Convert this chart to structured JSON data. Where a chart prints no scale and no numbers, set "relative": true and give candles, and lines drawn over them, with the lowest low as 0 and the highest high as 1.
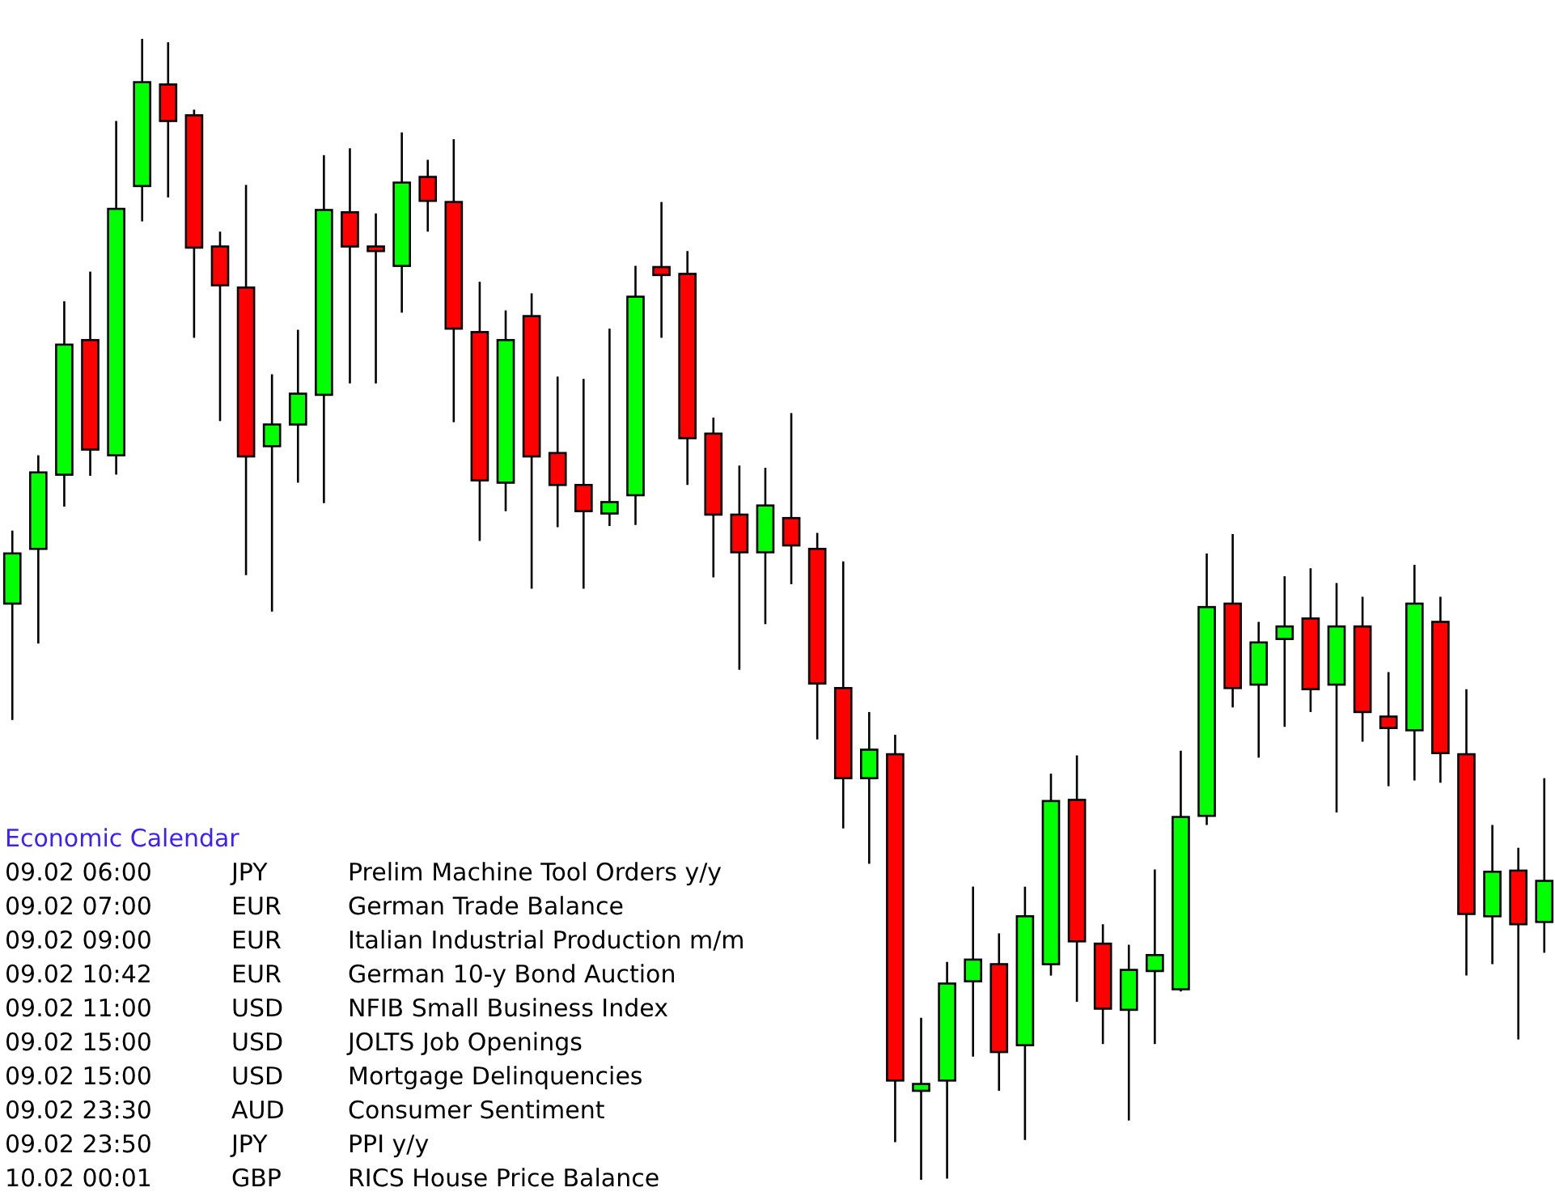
{
  "chart_data": [
    {
      "type": "candlestick",
      "relative": true,
      "categories": [
        null,
        null,
        null,
        null,
        null,
        null,
        null,
        null,
        null,
        null,
        null,
        null,
        null,
        null,
        null,
        null,
        null,
        null,
        null,
        null,
        null,
        null,
        null,
        null,
        null,
        null,
        null,
        null,
        null,
        null,
        null,
        null,
        null,
        null,
        null,
        null,
        null,
        null,
        null,
        null,
        null,
        null,
        null,
        null,
        null,
        null,
        null,
        null,
        null,
        null,
        null,
        null,
        null,
        null,
        null,
        null,
        null,
        null,
        null,
        null
      ],
      "ohlc": [
        [
          0.505,
          0.569,
          0.403,
          0.549
        ],
        [
          0.553,
          0.635,
          0.47,
          0.62
        ],
        [
          0.618,
          0.77,
          0.59,
          0.732
        ],
        [
          0.736,
          0.796,
          0.617,
          0.64
        ],
        [
          0.635,
          0.928,
          0.618,
          0.851
        ],
        [
          0.871,
          1,
          0.84,
          0.962
        ],
        [
          0.96,
          0.997,
          0.861,
          0.928
        ],
        [
          0.933,
          0.938,
          0.738,
          0.817
        ],
        [
          0.818,
          0.831,
          0.665,
          0.784
        ],
        [
          0.782,
          0.872,
          0.53,
          0.634
        ],
        [
          0.643,
          0.706,
          0.498,
          0.662
        ],
        [
          0.662,
          0.745,
          0.611,
          0.689
        ],
        [
          0.688,
          0.898,
          0.593,
          0.85
        ],
        [
          0.848,
          0.904,
          0.698,
          0.818
        ],
        [
          0.818,
          0.847,
          0.698,
          0.814
        ],
        [
          0.801,
          0.918,
          0.76,
          0.874
        ],
        [
          0.879,
          0.894,
          0.831,
          0.858
        ],
        [
          0.857,
          0.912,
          0.664,
          0.746
        ],
        [
          0.743,
          0.787,
          0.56,
          0.613
        ],
        [
          0.611,
          0.762,
          0.586,
          0.736
        ],
        [
          0.757,
          0.777,
          0.518,
          0.634
        ],
        [
          0.637,
          0.704,
          0.572,
          0.609
        ],
        [
          0.609,
          0.702,
          0.518,
          0.586
        ],
        [
          0.584,
          0.746,
          0.573,
          0.594
        ],
        [
          0.6,
          0.801,
          0.574,
          0.774
        ],
        [
          0.8,
          0.857,
          0.738,
          0.793
        ],
        [
          0.794,
          0.814,
          0.609,
          0.65
        ],
        [
          0.654,
          0.668,
          0.528,
          0.583
        ],
        [
          0.583,
          0.626,
          0.447,
          0.55
        ],
        [
          0.55,
          0.624,
          0.487,
          0.591
        ],
        [
          0.58,
          0.672,
          0.522,
          0.556
        ],
        [
          0.553,
          0.567,
          0.386,
          0.435
        ],
        [
          0.431,
          0.542,
          0.308,
          0.352
        ],
        [
          0.352,
          0.41,
          0.277,
          0.377
        ],
        [
          0.373,
          0.39,
          0.033,
          0.087
        ],
        [
          0.078,
          0.142,
          0,
          0.084
        ],
        [
          0.087,
          0.191,
          0.001,
          0.172
        ],
        [
          0.174,
          0.257,
          0.108,
          0.193
        ],
        [
          0.189,
          0.216,
          0.078,
          0.112
        ],
        [
          0.118,
          0.257,
          0.035,
          0.231
        ],
        [
          0.189,
          0.356,
          0.179,
          0.332
        ],
        [
          0.333,
          0.372,
          0.156,
          0.209
        ],
        [
          0.207,
          0.224,
          0.119,
          0.15
        ],
        [
          0.149,
          0.206,
          0.052,
          0.184
        ],
        [
          0.183,
          0.272,
          0.119,
          0.197
        ],
        [
          0.167,
          0.376,
          0.165,
          0.318
        ],
        [
          0.319,
          0.549,
          0.311,
          0.502
        ],
        [
          0.505,
          0.566,
          0.414,
          0.431
        ],
        [
          0.434,
          0.489,
          0.37,
          0.471
        ],
        [
          0.474,
          0.529,
          0.397,
          0.485
        ],
        [
          0.492,
          0.536,
          0.41,
          0.43
        ],
        [
          0.434,
          0.523,
          0.322,
          0.485
        ],
        [
          0.485,
          0.511,
          0.384,
          0.41
        ],
        [
          0.406,
          0.445,
          0.345,
          0.396
        ],
        [
          0.394,
          0.539,
          0.35,
          0.505
        ],
        [
          0.489,
          0.511,
          0.348,
          0.374
        ],
        [
          0.373,
          0.43,
          0.179,
          0.233
        ],
        [
          0.231,
          0.311,
          0.189,
          0.27
        ],
        [
          0.271,
          0.291,
          0.123,
          0.224
        ],
        [
          0.226,
          0.352,
          0.199,
          0.262
        ]
      ],
      "colors": [
        "#00ff00",
        "#00ff00",
        "#00ff00",
        "#ff0000",
        "#00ff00",
        "#00ff00",
        "#ff0000",
        "#ff0000",
        "#ff0000",
        "#ff0000",
        "#00ff00",
        "#00ff00",
        "#00ff00",
        "#ff0000",
        "#ff0000",
        "#00ff00",
        "#ff0000",
        "#ff0000",
        "#ff0000",
        "#00ff00",
        "#ff0000",
        "#ff0000",
        "#ff0000",
        "#00ff00",
        "#00ff00",
        "#ff0000",
        "#ff0000",
        "#ff0000",
        "#ff0000",
        "#00ff00",
        "#ff0000",
        "#ff0000",
        "#ff0000",
        "#00ff00",
        "#ff0000",
        "#00ff00",
        "#00ff00",
        "#00ff00",
        "#ff0000",
        "#00ff00",
        "#00ff00",
        "#ff0000",
        "#ff0000",
        "#00ff00",
        "#00ff00",
        "#00ff00",
        "#00ff00",
        "#ff0000",
        "#00ff00",
        "#00ff00",
        "#ff0000",
        "#00ff00",
        "#ff0000",
        "#ff0000",
        "#00ff00",
        "#ff0000",
        "#ff0000",
        "#00ff00",
        "#ff0000",
        "#00ff00"
      ]
    },
    {
      "type": "other",
      "title": "Economic Calendar",
      "annotations": [
        "09.02 06:00\tJPY\tPrelim Machine Tool Orders y/y",
        "09.02 07:00\tEUR\tGerman Trade Balance",
        "09.02 09:00\tEUR\tItalian Industrial Production m/m",
        "09.02 10:42\tEUR\tGerman 10-y Bond Auction",
        "09.02 11:00\tUSD\tNFIB Small Business Index",
        "09.02 15:00\tUSD\tJOLTS Job Openings",
        "09.02 15:00\tUSD\tMortgage Delinquencies",
        "09.02 23:30\tAUD\tConsumer Sentiment",
        "09.02 23:50\tJPY\tPPI y/y",
        "10.02 00:01\tGBP\tRICS House Price Balance"
      ]
    }
  ]
}
